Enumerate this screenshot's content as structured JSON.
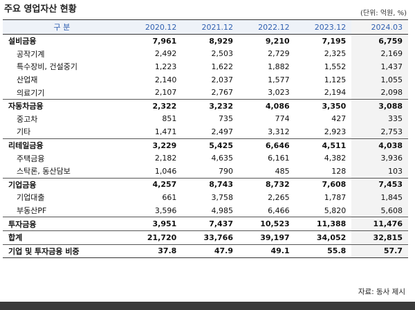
{
  "title": "주요 영업자산 현황",
  "unit": "(단위: 억원, %)",
  "table": {
    "header": [
      "구 분",
      "2020.12",
      "2021.12",
      "2022.12",
      "2023.12",
      "2024.03"
    ],
    "sections": [
      {
        "row": [
          "설비금융",
          "7,961",
          "8,929",
          "9,210",
          "7,195",
          "6,759"
        ],
        "items": [
          [
            "공작기계",
            "2,492",
            "2,503",
            "2,729",
            "2,325",
            "2,169"
          ],
          [
            "특수장비, 건설중기",
            "1,223",
            "1,622",
            "1,882",
            "1,552",
            "1,437"
          ],
          [
            "산업재",
            "2,140",
            "2,037",
            "1,577",
            "1,125",
            "1,055"
          ],
          [
            "의료기기",
            "2,107",
            "2,767",
            "3,023",
            "2,194",
            "2,098"
          ]
        ]
      },
      {
        "row": [
          "자동차금융",
          "2,322",
          "3,232",
          "4,086",
          "3,350",
          "3,088"
        ],
        "items": [
          [
            "중고차",
            "851",
            "735",
            "774",
            "427",
            "335"
          ],
          [
            "기타",
            "1,471",
            "2,497",
            "3,312",
            "2,923",
            "2,753"
          ]
        ]
      },
      {
        "row": [
          "리테일금융",
          "3,229",
          "5,425",
          "6,646",
          "4,511",
          "4,038"
        ],
        "items": [
          [
            "주택금융",
            "2,182",
            "4,635",
            "6,161",
            "4,382",
            "3,936"
          ],
          [
            "스탁론, 동산담보",
            "1,046",
            "790",
            "485",
            "128",
            "103"
          ]
        ]
      },
      {
        "row": [
          "기업금융",
          "4,257",
          "8,743",
          "8,732",
          "7,608",
          "7,453"
        ],
        "items": [
          [
            "기업대출",
            "661",
            "3,758",
            "2,265",
            "1,787",
            "1,845"
          ],
          [
            "부동산PF",
            "3,596",
            "4,985",
            "6,466",
            "5,820",
            "5,608"
          ]
        ]
      },
      {
        "row": [
          "투자금융",
          "3,951",
          "7,437",
          "10,523",
          "11,388",
          "11,476"
        ]
      },
      {
        "row": [
          "합계",
          "21,720",
          "33,766",
          "39,197",
          "34,052",
          "32,815"
        ]
      },
      {
        "row": [
          "기업 및 투자금융 비중",
          "37.8",
          "47.9",
          "49.1",
          "55.8",
          "57.7"
        ]
      }
    ]
  },
  "source": "자료: 동사 제시"
}
